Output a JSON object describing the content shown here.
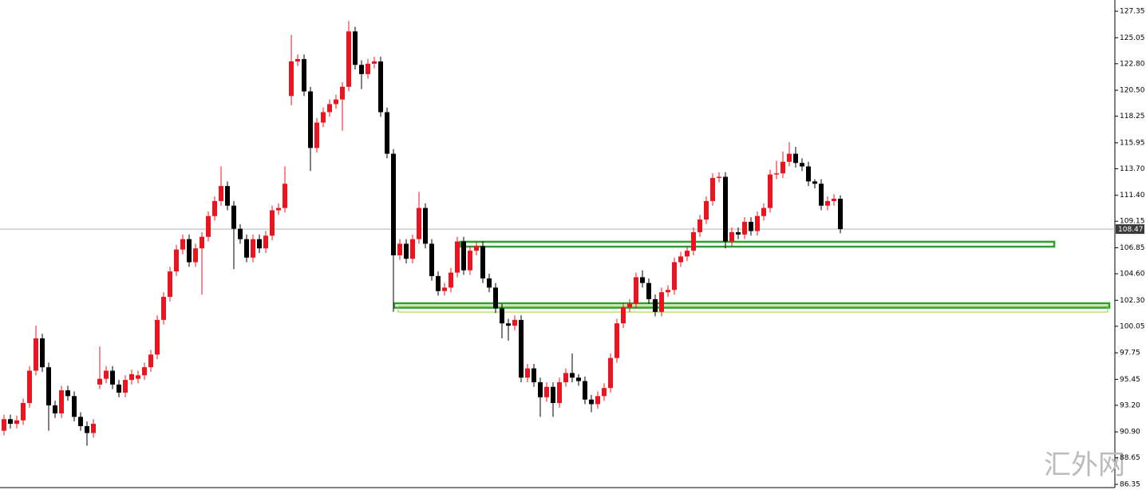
{
  "chart_data": {
    "type": "candlestick",
    "up_color": "#e8141e",
    "down_color": "#000000",
    "ylim": [
      86.14,
      128.32
    ],
    "yticks": [
      127.35,
      125.05,
      {
        "value": 122.8,
        "label": "122.80"
      },
      {
        "value": 120.5,
        "label": "120.50"
      },
      118.25,
      115.95,
      {
        "value": 113.7,
        "label": "113.70"
      },
      {
        "value": 111.4,
        "label": "111.40"
      },
      109.15,
      106.85,
      {
        "value": 104.6,
        "label": "104.60"
      },
      {
        "value": 102.3,
        "label": "102.30"
      },
      100.05,
      97.75,
      95.45,
      {
        "value": 93.2,
        "label": "93.20"
      },
      {
        "value": 90.9,
        "label": "90.90"
      },
      88.65,
      86.35
    ],
    "current_price": 108.47,
    "zones": [
      {
        "top": 107.37,
        "bottom": 106.95,
        "color": "#2e9e2e"
      },
      {
        "top": 102.04,
        "bottom": 101.66,
        "color": "#2e9e2e"
      },
      {
        "top": 101.83,
        "bottom": 101.28,
        "color": "#9acd32"
      }
    ],
    "open": [
      91.0,
      92.0,
      91.6,
      91.9,
      93.4,
      96.2,
      99.0,
      96.5,
      93.2,
      92.5,
      94.5,
      94.0,
      92.2,
      91.4,
      90.8,
      95.0,
      95.5,
      96.2,
      95.0,
      94.3,
      95.4,
      95.5,
      95.8,
      96.5,
      97.6,
      100.6,
      102.6,
      104.8,
      106.7,
      107.6,
      105.6,
      106.8,
      107.8,
      109.6,
      110.9,
      112.2,
      110.5,
      108.5,
      107.6,
      106.0,
      107.6,
      106.8,
      107.9,
      110.1,
      110.3,
      120.0,
      123.0,
      123.2,
      120.4,
      115.5,
      117.7,
      118.6,
      119.3,
      119.7,
      120.8,
      125.6,
      122.7,
      121.9,
      122.8,
      123.0,
      118.6,
      115.0,
      106.2,
      107.2,
      105.9,
      107.6,
      110.3,
      107.2,
      104.4,
      103.1,
      103.4,
      104.7,
      107.4,
      104.9,
      106.6,
      107.0,
      104.2,
      103.4,
      101.6,
      100.3,
      100.1,
      100.6,
      95.6,
      96.4,
      95.2,
      93.9,
      94.8,
      93.4,
      95.2,
      96.0,
      95.6,
      95.3,
      93.7,
      93.3,
      94.0,
      94.7,
      97.3,
      100.3,
      101.7,
      102.0,
      104.3,
      103.8,
      102.4,
      101.3,
      103.0,
      103.2,
      105.6,
      106.1,
      106.6,
      108.2,
      109.3,
      110.9,
      112.9,
      113.0,
      107.4,
      108.2,
      108.0,
      109.1,
      108.3,
      109.6,
      110.3,
      113.2,
      113.3,
      114.3,
      115.0,
      114.2,
      113.9,
      112.6,
      112.4,
      110.5,
      110.9,
      111.1
    ],
    "high": [
      92.4,
      92.4,
      92.3,
      93.8,
      96.6,
      100.1,
      99.4,
      96.9,
      93.6,
      94.9,
      94.9,
      94.4,
      92.6,
      91.8,
      92.0,
      98.3,
      96.6,
      96.6,
      95.4,
      95.8,
      96.3,
      96.2,
      96.9,
      98.0,
      101.0,
      103.0,
      105.2,
      107.1,
      108.0,
      108.0,
      107.2,
      108.2,
      110.0,
      111.3,
      113.9,
      112.6,
      110.9,
      108.9,
      108.0,
      108.0,
      108.0,
      108.3,
      110.5,
      110.7,
      113.9,
      125.3,
      123.6,
      123.6,
      120.8,
      118.1,
      119.0,
      119.7,
      120.1,
      121.2,
      126.5,
      126.0,
      123.1,
      123.2,
      123.4,
      123.4,
      119.0,
      115.4,
      107.6,
      107.6,
      108.0,
      111.7,
      110.7,
      107.6,
      104.8,
      103.8,
      105.1,
      107.8,
      107.8,
      107.0,
      107.4,
      107.4,
      104.6,
      103.8,
      102.0,
      100.7,
      101.0,
      101.0,
      96.8,
      96.8,
      95.6,
      95.2,
      95.2,
      95.6,
      96.4,
      97.7,
      95.9,
      95.7,
      94.1,
      94.4,
      95.1,
      97.7,
      100.7,
      102.1,
      102.4,
      104.7,
      104.9,
      104.2,
      102.8,
      103.4,
      103.6,
      106.0,
      106.5,
      107.0,
      108.6,
      109.7,
      111.3,
      113.3,
      113.4,
      113.4,
      108.6,
      108.6,
      109.5,
      109.5,
      110.0,
      110.7,
      113.6,
      114.4,
      115.2,
      116.0,
      115.6,
      114.6,
      114.3,
      112.8,
      112.8,
      111.3,
      111.5,
      111.4
    ],
    "low": [
      90.6,
      91.2,
      91.2,
      91.5,
      93.0,
      95.8,
      96.1,
      91.0,
      92.1,
      92.1,
      93.6,
      91.8,
      91.0,
      89.7,
      90.4,
      94.6,
      95.1,
      94.6,
      93.9,
      93.9,
      95.0,
      95.1,
      95.4,
      96.1,
      97.2,
      100.2,
      102.2,
      104.4,
      106.3,
      105.2,
      105.2,
      102.8,
      107.4,
      109.2,
      110.5,
      110.1,
      105.0,
      107.2,
      105.6,
      105.6,
      106.4,
      106.4,
      107.5,
      109.7,
      109.9,
      119.2,
      122.6,
      120.0,
      113.5,
      115.1,
      117.3,
      118.2,
      118.9,
      117.0,
      120.4,
      122.3,
      120.6,
      121.5,
      122.4,
      118.2,
      114.6,
      101.3,
      105.8,
      105.5,
      105.5,
      107.2,
      106.8,
      104.0,
      102.7,
      102.7,
      103.0,
      104.3,
      104.5,
      104.5,
      106.2,
      103.8,
      103.0,
      101.2,
      99.0,
      98.8,
      99.7,
      95.2,
      95.2,
      94.8,
      92.2,
      93.5,
      92.2,
      93.0,
      94.8,
      95.2,
      94.9,
      93.3,
      92.6,
      92.9,
      93.6,
      94.3,
      96.9,
      99.9,
      101.3,
      101.6,
      103.4,
      102.0,
      100.9,
      100.9,
      102.6,
      102.8,
      105.2,
      105.7,
      106.2,
      107.8,
      108.9,
      110.5,
      112.5,
      106.8,
      107.0,
      107.6,
      107.6,
      107.9,
      107.9,
      109.2,
      109.9,
      112.8,
      112.9,
      113.9,
      113.8,
      113.5,
      112.2,
      112.0,
      110.1,
      110.1,
      110.5,
      108.1
    ],
    "close": [
      92.0,
      91.6,
      91.9,
      93.4,
      96.2,
      99.0,
      96.5,
      93.2,
      92.5,
      94.5,
      94.0,
      92.2,
      91.4,
      90.8,
      91.6,
      95.5,
      96.2,
      95.0,
      94.3,
      95.4,
      95.9,
      95.8,
      96.5,
      97.6,
      100.6,
      102.6,
      104.8,
      106.7,
      107.6,
      105.6,
      106.8,
      107.8,
      109.6,
      110.9,
      112.2,
      110.5,
      108.5,
      107.6,
      106.0,
      107.6,
      106.8,
      107.9,
      110.1,
      110.3,
      112.4,
      123.0,
      123.2,
      120.4,
      115.5,
      117.7,
      118.6,
      119.3,
      119.7,
      120.8,
      125.6,
      122.7,
      121.9,
      122.8,
      123.0,
      118.6,
      115.0,
      106.2,
      107.2,
      105.9,
      107.6,
      110.3,
      107.2,
      104.4,
      103.1,
      103.4,
      104.7,
      107.4,
      104.9,
      106.6,
      107.0,
      104.2,
      103.4,
      101.6,
      100.3,
      100.1,
      100.6,
      95.6,
      96.4,
      95.2,
      93.9,
      94.8,
      93.4,
      95.2,
      96.0,
      95.6,
      95.3,
      93.7,
      93.3,
      94.0,
      94.7,
      97.3,
      100.3,
      101.7,
      102.0,
      104.3,
      103.8,
      102.4,
      101.3,
      103.0,
      103.2,
      105.6,
      106.1,
      106.6,
      108.2,
      109.3,
      110.9,
      112.9,
      113.0,
      107.4,
      108.2,
      108.0,
      109.1,
      108.3,
      109.6,
      110.3,
      113.2,
      113.3,
      114.3,
      115.0,
      114.2,
      113.9,
      112.6,
      112.4,
      110.5,
      110.9,
      111.1,
      108.47
    ],
    "watermark": "汇外网"
  }
}
